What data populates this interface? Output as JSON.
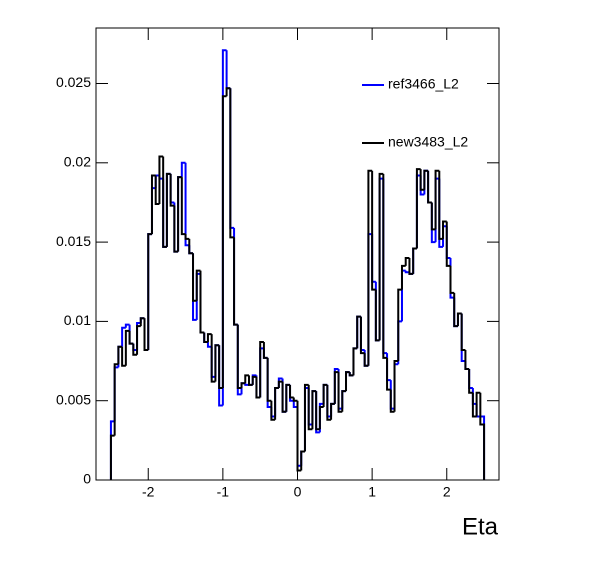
{
  "chart_data": {
    "type": "histogram",
    "x_label": "Eta",
    "bins": [
      -2.5,
      -2.45,
      -2.4,
      -2.35,
      -2.3,
      -2.25,
      -2.2,
      -2.15,
      -2.1,
      -2.05,
      -2,
      -1.95,
      -1.9,
      -1.85,
      -1.8,
      -1.75,
      -1.7,
      -1.65,
      -1.6,
      -1.55,
      -1.5,
      -1.45,
      -1.4,
      -1.35,
      -1.3,
      -1.25,
      -1.2,
      -1.15,
      -1.1,
      -1.05,
      -1,
      -0.95,
      -0.9,
      -0.85,
      -0.8,
      -0.75,
      -0.7,
      -0.65,
      -0.6,
      -0.55,
      -0.5,
      -0.45,
      -0.4,
      -0.35,
      -0.3,
      -0.25,
      -0.2,
      -0.15,
      -0.1,
      -0.05,
      0,
      0.05,
      0.1,
      0.15,
      0.2,
      0.25,
      0.3,
      0.35,
      0.4,
      0.45,
      0.5,
      0.55,
      0.6,
      0.65,
      0.7,
      0.75,
      0.8,
      0.85,
      0.9,
      0.95,
      1,
      1.05,
      1.1,
      1.15,
      1.2,
      1.25,
      1.3,
      1.35,
      1.4,
      1.45,
      1.5,
      1.55,
      1.6,
      1.65,
      1.7,
      1.75,
      1.8,
      1.85,
      1.9,
      1.95,
      2,
      2.05,
      2.1,
      2.15,
      2.2,
      2.25,
      2.3,
      2.35,
      2.4,
      2.45,
      2.5
    ],
    "series": [
      {
        "name": "ref3466_L2",
        "color": "#0000ff",
        "values": [
          0.0037,
          0.0071,
          0.0084,
          0.0096,
          0.0098,
          0.0086,
          0.0082,
          0.0099,
          0.0102,
          0.0082,
          0.0155,
          0.0184,
          0.0192,
          0.019,
          0.0147,
          0.0193,
          0.0175,
          0.0144,
          0.0191,
          0.02,
          0.0148,
          0.0143,
          0.0101,
          0.013,
          0.0093,
          0.0087,
          0.0084,
          0.0065,
          0.0085,
          0.0047,
          0.0271,
          0.0247,
          0.0159,
          0.0098,
          0.0054,
          0.0061,
          0.006,
          0.006,
          0.0066,
          0.0052,
          0.0083,
          0.0077,
          0.0046,
          0.004,
          0.0058,
          0.0064,
          0.0043,
          0.006,
          0.005,
          0.0046,
          0.0009,
          0.0018,
          0.0058,
          0.0035,
          0.0056,
          0.003,
          0.0048,
          0.006,
          0.004,
          0.0048,
          0.007,
          0.0045,
          0.0056,
          0.0068,
          0.0066,
          0.0083,
          0.0103,
          0.0082,
          0.0072,
          0.0155,
          0.0125,
          0.0088,
          0.019,
          0.008,
          0.0063,
          0.0045,
          0.0073,
          0.01,
          0.0132,
          0.0131,
          0.013,
          0.0146,
          0.0192,
          0.018,
          0.0195,
          0.0175,
          0.015,
          0.019,
          0.0147,
          0.016,
          0.014,
          0.0115,
          0.0097,
          0.0105,
          0.0075,
          0.007,
          0.0058,
          0.0048,
          0.004,
          0.004
        ]
      },
      {
        "name": "new3483_L2",
        "color": "#000000",
        "values": [
          0.0028,
          0.0073,
          0.0084,
          0.0072,
          0.0094,
          0.0086,
          0.0079,
          0.0097,
          0.0102,
          0.0082,
          0.0155,
          0.0192,
          0.0174,
          0.0204,
          0.0147,
          0.0193,
          0.0173,
          0.0144,
          0.0191,
          0.0155,
          0.0152,
          0.0143,
          0.0113,
          0.0132,
          0.0093,
          0.0087,
          0.0092,
          0.0062,
          0.0085,
          0.0058,
          0.0242,
          0.0247,
          0.0153,
          0.0098,
          0.0058,
          0.0061,
          0.0066,
          0.006,
          0.0065,
          0.0052,
          0.0087,
          0.0077,
          0.005,
          0.0038,
          0.0058,
          0.0062,
          0.0043,
          0.006,
          0.0052,
          0.005,
          0.0006,
          0.0018,
          0.006,
          0.0032,
          0.0056,
          0.0032,
          0.0046,
          0.006,
          0.0038,
          0.0048,
          0.0068,
          0.0043,
          0.0056,
          0.0068,
          0.0066,
          0.0083,
          0.0103,
          0.008,
          0.0072,
          0.0195,
          0.012,
          0.0088,
          0.0193,
          0.0077,
          0.0057,
          0.0043,
          0.0075,
          0.012,
          0.0135,
          0.014,
          0.013,
          0.0146,
          0.0196,
          0.0183,
          0.0195,
          0.0175,
          0.0158,
          0.0195,
          0.0152,
          0.0163,
          0.0135,
          0.0118,
          0.0097,
          0.0105,
          0.0082,
          0.007,
          0.0055,
          0.004,
          0.0055,
          0.0035
        ]
      }
    ],
    "xlim": [
      -2.7,
      2.7
    ],
    "xticks": [
      -2,
      -1,
      0,
      1,
      2
    ],
    "ylim": [
      0,
      0.0285
    ],
    "yticks": [
      0,
      0.005,
      0.01,
      0.015,
      0.02,
      0.025
    ]
  }
}
